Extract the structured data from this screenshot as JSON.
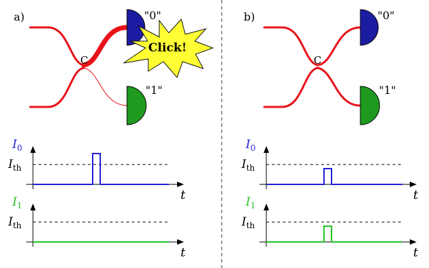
{
  "panels": [
    {
      "letter": "a)",
      "coupler_label": "C",
      "detector0_label": "\"0\"",
      "detector1_label": "\"1\"",
      "burst_label": "Click!",
      "signal_top": {
        "sym": "I",
        "sub": "0",
        "threshold": {
          "sym": "I",
          "sub": "th"
        },
        "pulse_level_rel_threshold": 1.45,
        "axis_label": "t"
      },
      "signal_bottom": {
        "sym": "I",
        "sub": "1",
        "threshold": {
          "sym": "I",
          "sub": "th"
        },
        "pulse_level_rel_threshold": 0.0,
        "axis_label": "t"
      }
    },
    {
      "letter": "b)",
      "coupler_label": "C",
      "detector0_label": "\"0\"",
      "detector1_label": "\"1\"",
      "signal_top": {
        "sym": "I",
        "sub": "0",
        "threshold": {
          "sym": "I",
          "sub": "th"
        },
        "pulse_level_rel_threshold": 0.75,
        "axis_label": "t"
      },
      "signal_bottom": {
        "sym": "I",
        "sub": "1",
        "threshold": {
          "sym": "I",
          "sub": "th"
        },
        "pulse_level_rel_threshold": 0.75,
        "axis_label": "t"
      }
    }
  ],
  "colors": {
    "waveguide": "#e8131a",
    "detector0": "#1c1ca3",
    "detector1": "#1f9a1f",
    "burst_fill": "#ffff33",
    "signal0": "#1f1fd6",
    "signal1": "#22c422",
    "axis": "#000000",
    "threshold_dash": "#000000",
    "divider": "#333333"
  }
}
